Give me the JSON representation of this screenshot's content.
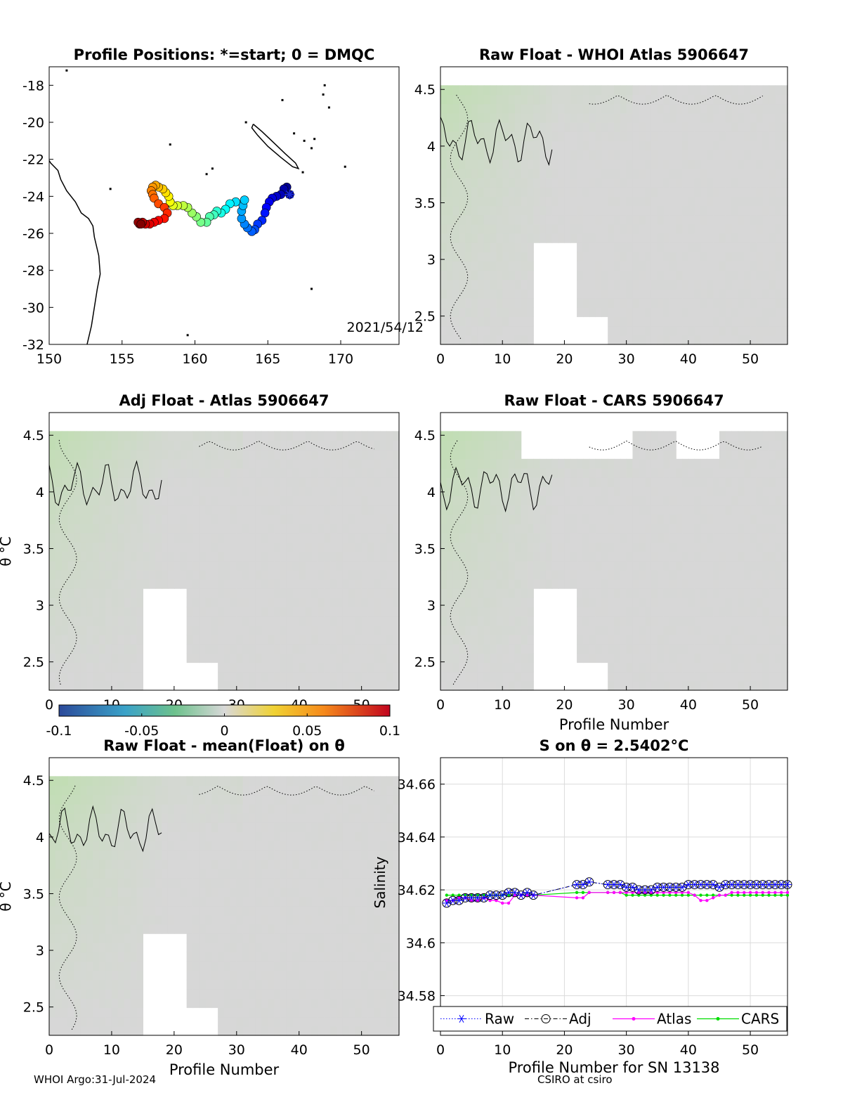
{
  "footer": {
    "left": "WHOI Argo:31-Jul-2024",
    "right": "CSIRO at csiro"
  },
  "colorbar": {
    "ticks": [
      "-0.1",
      "-0.05",
      "0",
      "0.05",
      "0.1"
    ],
    "range": [
      -0.1,
      0.1
    ]
  },
  "chart_data": [
    {
      "type": "scatter",
      "title": "Profile Positions: *=start; 0 = DMQC",
      "annotation": "2021/54/12",
      "xlim": [
        150,
        174
      ],
      "ylim": [
        -32,
        -17
      ],
      "xticks": [
        "150",
        "155",
        "160",
        "165",
        "170"
      ],
      "yticks": [
        "-18",
        "-20",
        "-22",
        "-24",
        "-26",
        "-28",
        "-30",
        "-32"
      ],
      "track": [
        [
          166.5,
          -23.9
        ],
        [
          166.3,
          -23.5
        ],
        [
          166.1,
          -23.6
        ],
        [
          165.9,
          -23.9
        ],
        [
          165.6,
          -24.0
        ],
        [
          165.3,
          -24.1
        ],
        [
          165.1,
          -24.3
        ],
        [
          164.9,
          -24.6
        ],
        [
          164.8,
          -24.9
        ],
        [
          164.6,
          -25.3
        ],
        [
          164.3,
          -25.5
        ],
        [
          164.1,
          -25.8
        ],
        [
          163.9,
          -25.9
        ],
        [
          163.6,
          -25.7
        ],
        [
          163.4,
          -25.5
        ],
        [
          163.2,
          -25.2
        ],
        [
          163.2,
          -24.8
        ],
        [
          163.3,
          -24.5
        ],
        [
          163.4,
          -24.2
        ],
        [
          162.8,
          -24.3
        ],
        [
          162.4,
          -24.4
        ],
        [
          162.1,
          -24.7
        ],
        [
          161.8,
          -24.9
        ],
        [
          161.5,
          -24.8
        ],
        [
          161.3,
          -25.0
        ],
        [
          161.0,
          -25.1
        ],
        [
          160.8,
          -25.4
        ],
        [
          160.4,
          -25.4
        ],
        [
          160.1,
          -25.1
        ],
        [
          159.8,
          -24.9
        ],
        [
          159.5,
          -24.6
        ],
        [
          159.2,
          -24.5
        ],
        [
          158.8,
          -24.5
        ],
        [
          158.5,
          -24.5
        ],
        [
          158.3,
          -24.3
        ],
        [
          158.2,
          -24.0
        ],
        [
          158.0,
          -23.8
        ],
        [
          157.8,
          -23.6
        ],
        [
          157.5,
          -23.5
        ],
        [
          157.3,
          -23.4
        ],
        [
          157.1,
          -23.5
        ],
        [
          157.0,
          -23.7
        ],
        [
          157.1,
          -23.9
        ],
        [
          157.2,
          -24.1
        ],
        [
          157.5,
          -24.4
        ],
        [
          157.9,
          -24.6
        ],
        [
          158.1,
          -24.9
        ],
        [
          157.9,
          -25.2
        ],
        [
          157.5,
          -25.3
        ],
        [
          157.2,
          -25.4
        ],
        [
          156.9,
          -25.5
        ],
        [
          156.6,
          -25.5
        ],
        [
          156.4,
          -25.4
        ],
        [
          156.2,
          -25.5
        ],
        [
          156.1,
          -25.4
        ],
        [
          156.3,
          -25.5
        ]
      ]
    },
    {
      "type": "heatmap",
      "title": "Raw Float - WHOI Atlas  5906647",
      "xlim": [
        0,
        56
      ],
      "ylim": [
        2.25,
        4.7
      ],
      "xticks": [
        "0",
        "10",
        "20",
        "30",
        "40",
        "50"
      ],
      "yticks": [
        "2.5",
        "3",
        "3.5",
        "4",
        "4.5"
      ]
    },
    {
      "type": "heatmap",
      "title": "Adj Float - Atlas  5906647",
      "ylabel": "θ °C",
      "xlim": [
        0,
        56
      ],
      "ylim": [
        2.25,
        4.7
      ],
      "xticks": [
        "0",
        "10",
        "20",
        "30",
        "40",
        "50"
      ],
      "yticks": [
        "2.5",
        "3",
        "3.5",
        "4",
        "4.5"
      ]
    },
    {
      "type": "heatmap",
      "title": "Raw Float - CARS  5906647",
      "xlabel": "Profile Number",
      "xlim": [
        0,
        56
      ],
      "ylim": [
        2.25,
        4.7
      ],
      "xticks": [
        "0",
        "10",
        "20",
        "30",
        "40",
        "50"
      ],
      "yticks": [
        "2.5",
        "3",
        "3.5",
        "4",
        "4.5"
      ]
    },
    {
      "type": "heatmap",
      "title": "Raw Float - mean(Float) on θ",
      "xlabel": "Profile Number",
      "ylabel": "θ °C",
      "xlim": [
        0,
        56
      ],
      "ylim": [
        2.25,
        4.7
      ],
      "xticks": [
        "0",
        "10",
        "20",
        "30",
        "40",
        "50"
      ],
      "yticks": [
        "2.5",
        "3",
        "3.5",
        "4",
        "4.5"
      ]
    },
    {
      "type": "line",
      "title": "S on θ = 2.5402°C",
      "xlabel": "Profile Number for SN 13138",
      "ylabel": "Salinity",
      "xlim": [
        0,
        56
      ],
      "ylim": [
        34.565,
        34.67
      ],
      "xticks": [
        "0",
        "10",
        "20",
        "30",
        "40",
        "50"
      ],
      "yticks": [
        "34.58",
        "34.6",
        "34.62",
        "34.64",
        "34.66"
      ],
      "grid": true,
      "legend": "bottom",
      "series": [
        {
          "name": "Raw",
          "color": "#0000ff",
          "x": [
            1,
            2,
            3,
            4,
            5,
            6,
            7,
            8,
            9,
            10,
            11,
            12,
            13,
            14,
            15,
            22,
            23,
            24,
            27,
            28,
            29,
            30,
            31,
            32,
            33,
            34,
            35,
            36,
            37,
            38,
            39,
            40,
            41,
            42,
            43,
            44,
            45,
            46,
            47,
            48,
            49,
            50,
            51,
            52,
            53,
            54,
            55,
            56
          ],
          "y": [
            34.615,
            34.616,
            34.616,
            34.617,
            34.617,
            34.617,
            34.617,
            34.618,
            34.618,
            34.618,
            34.619,
            34.619,
            34.618,
            34.619,
            34.618,
            34.622,
            34.622,
            34.623,
            34.622,
            34.622,
            34.622,
            34.621,
            34.621,
            34.62,
            34.62,
            34.62,
            34.621,
            34.621,
            34.621,
            34.621,
            34.621,
            34.622,
            34.622,
            34.622,
            34.622,
            34.622,
            34.621,
            34.622,
            34.622,
            34.622,
            34.622,
            34.622,
            34.622,
            34.622,
            34.622,
            34.622,
            34.622,
            34.622
          ]
        },
        {
          "name": "Adj",
          "color": "#000000",
          "x": [
            1,
            2,
            3,
            4,
            5,
            6,
            7,
            8,
            9,
            10,
            11,
            12,
            13,
            14,
            15,
            22,
            23,
            24,
            27,
            28,
            29,
            30,
            31,
            32,
            33,
            34,
            35,
            36,
            37,
            38,
            39,
            40,
            41,
            42,
            43,
            44,
            45,
            46,
            47,
            48,
            49,
            50,
            51,
            52,
            53,
            54,
            55,
            56
          ],
          "y": [
            34.615,
            34.616,
            34.616,
            34.617,
            34.617,
            34.617,
            34.617,
            34.618,
            34.618,
            34.618,
            34.619,
            34.619,
            34.618,
            34.619,
            34.618,
            34.622,
            34.622,
            34.623,
            34.622,
            34.622,
            34.622,
            34.621,
            34.621,
            34.62,
            34.62,
            34.62,
            34.621,
            34.621,
            34.621,
            34.621,
            34.621,
            34.622,
            34.622,
            34.622,
            34.622,
            34.622,
            34.621,
            34.622,
            34.622,
            34.622,
            34.622,
            34.622,
            34.622,
            34.622,
            34.622,
            34.622,
            34.622,
            34.622
          ]
        },
        {
          "name": "Atlas",
          "color": "#ff00ff",
          "x": [
            1,
            2,
            3,
            4,
            5,
            6,
            7,
            8,
            9,
            10,
            11,
            12,
            13,
            14,
            15,
            22,
            23,
            24,
            27,
            28,
            29,
            30,
            31,
            32,
            33,
            34,
            35,
            36,
            37,
            38,
            39,
            40,
            41,
            42,
            43,
            44,
            45,
            46,
            47,
            48,
            49,
            50,
            51,
            52,
            53,
            54,
            55,
            56
          ],
          "y": [
            34.616,
            34.616,
            34.617,
            34.617,
            34.616,
            34.616,
            34.617,
            34.616,
            34.616,
            34.615,
            34.615,
            34.618,
            34.618,
            34.618,
            34.618,
            34.617,
            34.617,
            34.619,
            34.619,
            34.619,
            34.619,
            34.619,
            34.619,
            34.619,
            34.619,
            34.619,
            34.619,
            34.619,
            34.619,
            34.619,
            34.619,
            34.619,
            34.618,
            34.616,
            34.616,
            34.617,
            34.618,
            34.618,
            34.619,
            34.619,
            34.619,
            34.619,
            34.619,
            34.619,
            34.619,
            34.619,
            34.619,
            34.619
          ]
        },
        {
          "name": "CARS",
          "color": "#00dd00",
          "x": [
            1,
            2,
            3,
            4,
            5,
            6,
            7,
            8,
            9,
            10,
            11,
            12,
            13,
            14,
            15,
            22,
            23,
            24,
            27,
            28,
            29,
            30,
            31,
            32,
            33,
            34,
            35,
            36,
            37,
            38,
            39,
            40,
            41,
            42,
            43,
            44,
            45,
            46,
            47,
            48,
            49,
            50,
            51,
            52,
            53,
            54,
            55,
            56
          ],
          "y": [
            34.618,
            34.618,
            34.618,
            34.618,
            34.618,
            34.618,
            34.618,
            34.618,
            34.618,
            34.618,
            34.618,
            34.618,
            34.618,
            34.618,
            34.618,
            34.619,
            34.619,
            34.619,
            34.619,
            34.619,
            34.619,
            34.618,
            34.618,
            34.618,
            34.618,
            34.618,
            34.618,
            34.618,
            34.618,
            34.618,
            34.618,
            34.618,
            34.618,
            34.618,
            34.618,
            34.618,
            34.618,
            34.618,
            34.618,
            34.618,
            34.618,
            34.618,
            34.618,
            34.618,
            34.618,
            34.618,
            34.618,
            34.618
          ]
        }
      ]
    }
  ]
}
